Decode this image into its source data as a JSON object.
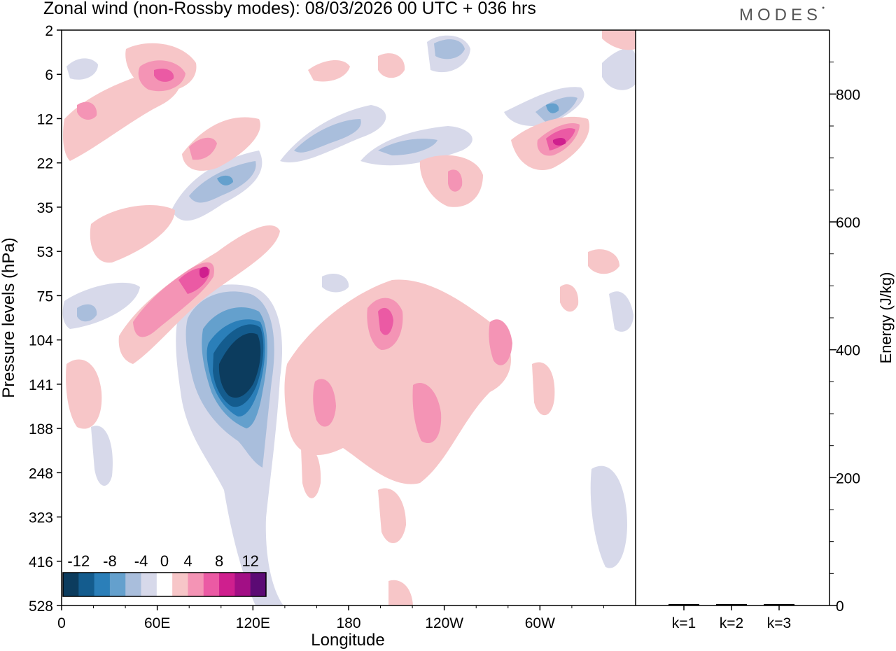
{
  "header": {
    "title": "Zonal wind (non-Rossby modes):  08/03/2026  00 UTC  + 036 hrs",
    "brand": "MODES"
  },
  "chart_data": [
    {
      "type": "heatmap",
      "title": "Zonal wind (non-Rossby modes):  08/03/2026  00 UTC  + 036 hrs",
      "xlabel": "Longitude",
      "ylabel": "Pressure levels (hPa)",
      "x_ticks": [
        "0",
        "60E",
        "120E",
        "180",
        "120W",
        "60W"
      ],
      "x_tick_degrees": [
        0,
        60,
        120,
        180,
        240,
        300
      ],
      "xlim": [
        0,
        360
      ],
      "y_ticks": [
        "2",
        "6",
        "12",
        "22",
        "35",
        "53",
        "75",
        "104",
        "141",
        "188",
        "248",
        "323",
        "416",
        "528"
      ],
      "colorbar": {
        "labels": [
          "-12",
          "-8",
          "-4",
          "0",
          "4",
          "8",
          "12"
        ],
        "levels": [
          -14,
          -12,
          -10,
          -8,
          -6,
          -4,
          -2,
          2,
          4,
          6,
          8,
          10,
          12,
          14
        ],
        "colors": [
          "#0c3c5e",
          "#145c8e",
          "#2b7fb9",
          "#64a0cd",
          "#a9bedc",
          "#d7d9ea",
          "#ffffff",
          "#f7c6c8",
          "#f494b5",
          "#eb5aa4",
          "#cf1f8e",
          "#a20f85",
          "#5b0a74"
        ]
      },
      "features": [
        {
          "name": "strong-easterly-core",
          "lon": 108,
          "level": "141",
          "value": -14
        },
        {
          "name": "easterly-tongue",
          "lon": 122,
          "level": "104",
          "value": -12
        },
        {
          "name": "westerly-core-upper",
          "lon": 95,
          "level": "53",
          "value": 10
        },
        {
          "name": "westerly-band",
          "lon": 200,
          "level": "104",
          "value": 8
        },
        {
          "name": "westerly-patch",
          "lon": 215,
          "level": "188",
          "value": 6
        },
        {
          "name": "easterly-upper",
          "lon": 290,
          "level": "12",
          "value": -8
        },
        {
          "name": "westerly-upper",
          "lon": 300,
          "level": "22",
          "value": 10
        }
      ]
    },
    {
      "type": "bar",
      "categories": [
        "k=1",
        "k=2",
        "k=3"
      ],
      "values": [
        1.5,
        1.2,
        1.0
      ],
      "ylabel": "Energy (J/kg)",
      "ylim": [
        0,
        900
      ],
      "y_ticks": [
        "0",
        "200",
        "400",
        "600",
        "800"
      ],
      "y_tick_values": [
        0,
        200,
        400,
        600,
        800
      ]
    }
  ]
}
